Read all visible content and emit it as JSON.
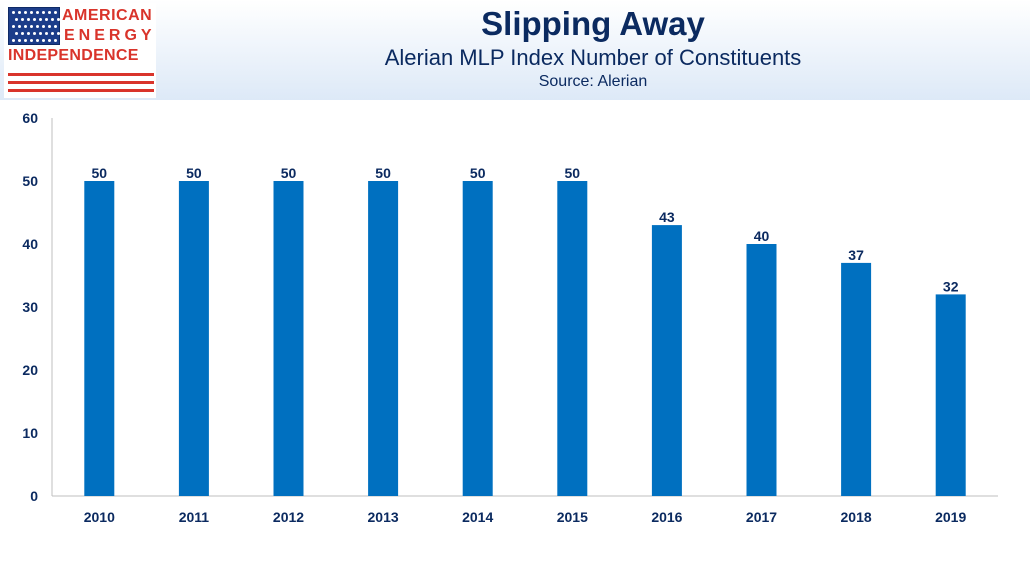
{
  "logo": {
    "line1": "AMERICAN",
    "line2": "ENERGY",
    "line3": "INDEPENDENCE"
  },
  "header": {
    "title": "Slipping Away",
    "subtitle": "Alerian MLP Index Number of Constituents",
    "source": "Source: Alerian"
  },
  "colors": {
    "bar": "#0070c0",
    "text": "#0b2a60",
    "logo_red": "#d9342b",
    "logo_blue": "#1c3d8a"
  },
  "chart_data": {
    "type": "bar",
    "categories": [
      "2010",
      "2011",
      "2012",
      "2013",
      "2014",
      "2015",
      "2016",
      "2017",
      "2018",
      "2019"
    ],
    "values": [
      50,
      50,
      50,
      50,
      50,
      50,
      43,
      40,
      37,
      32
    ],
    "data_labels": [
      "50",
      "50",
      "50",
      "50",
      "50",
      "50",
      "43",
      "40",
      "37",
      "32"
    ],
    "title": "Slipping Away",
    "subtitle": "Alerian MLP Index Number of Constituents",
    "xlabel": "",
    "ylabel": "",
    "ylim": [
      0,
      60
    ],
    "yticks": [
      "0",
      "10",
      "20",
      "30",
      "40",
      "50",
      "60"
    ],
    "grid": false,
    "legend": "none"
  }
}
